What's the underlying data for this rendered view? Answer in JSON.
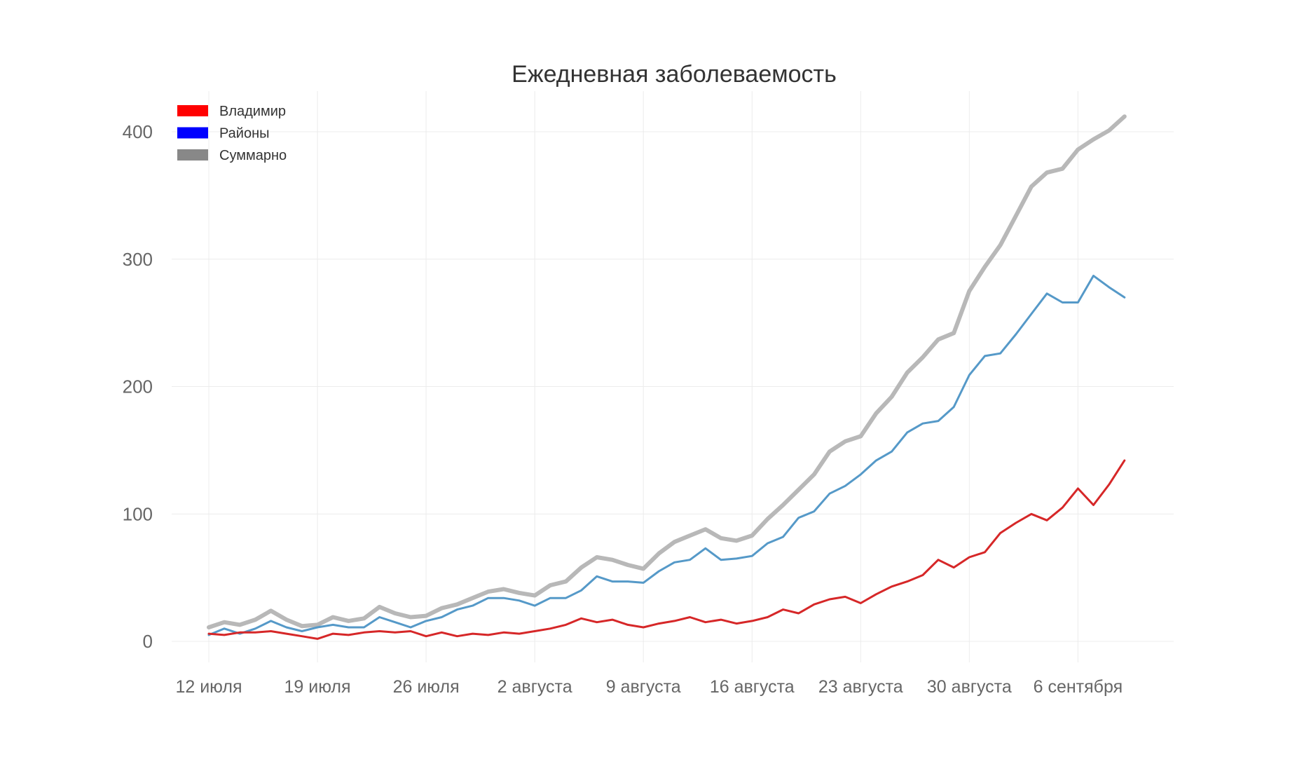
{
  "chart_data": {
    "type": "line",
    "title": "Ежедневная заболеваемость",
    "xlabel": "",
    "ylabel": "",
    "ylim": [
      0,
      420
    ],
    "y_ticks": [
      0,
      100,
      200,
      300,
      400
    ],
    "x_tick_labels": [
      "12 июля",
      "19 июля",
      "26 июля",
      "2 августа",
      "9 августа",
      "16 августа",
      "23 августа",
      "30 августа",
      "6 сентября"
    ],
    "x_tick_positions": [
      0,
      7,
      14,
      21,
      28,
      35,
      42,
      49,
      56
    ],
    "legend_position": "top-left",
    "x": [
      0,
      1,
      2,
      3,
      4,
      5,
      6,
      7,
      8,
      9,
      10,
      11,
      12,
      13,
      14,
      15,
      16,
      17,
      18,
      19,
      20,
      21,
      22,
      23,
      24,
      25,
      26,
      27,
      28,
      29,
      30,
      31,
      32,
      33,
      34,
      35,
      36,
      37,
      38,
      39,
      40,
      41,
      42,
      43,
      44,
      45,
      46,
      47,
      48,
      49,
      50,
      51,
      52,
      53,
      54,
      55,
      56,
      57,
      58,
      59
    ],
    "series": [
      {
        "name": "Владимир",
        "legend_color": "#ff0000",
        "color": "#d62728",
        "values": [
          6,
          5,
          7,
          7,
          8,
          6,
          4,
          2,
          6,
          5,
          7,
          8,
          7,
          8,
          4,
          7,
          4,
          6,
          5,
          7,
          6,
          8,
          10,
          13,
          18,
          15,
          17,
          13,
          11,
          14,
          16,
          19,
          15,
          17,
          14,
          16,
          19,
          25,
          22,
          29,
          33,
          35,
          30,
          37,
          43,
          47,
          52,
          64,
          58,
          66,
          70,
          85,
          93,
          100,
          95,
          105,
          120,
          107,
          123,
          142
        ]
      },
      {
        "name": "Районы",
        "legend_color": "#0000ff",
        "color": "#5599c8",
        "values": [
          5,
          10,
          6,
          10,
          16,
          11,
          8,
          11,
          13,
          11,
          11,
          19,
          15,
          11,
          16,
          19,
          25,
          28,
          34,
          34,
          32,
          28,
          34,
          34,
          40,
          51,
          47,
          47,
          46,
          55,
          62,
          64,
          73,
          64,
          65,
          67,
          77,
          82,
          97,
          102,
          116,
          122,
          131,
          142,
          149,
          164,
          171,
          173,
          184,
          209,
          224,
          226,
          241,
          257,
          273,
          266,
          266,
          287,
          278,
          270
        ]
      },
      {
        "name": "Суммарно",
        "legend_color": "#888888",
        "color": "#b8b8b8",
        "values": [
          11,
          15,
          13,
          17,
          24,
          17,
          12,
          13,
          19,
          16,
          18,
          27,
          22,
          19,
          20,
          26,
          29,
          34,
          39,
          41,
          38,
          36,
          44,
          47,
          58,
          66,
          64,
          60,
          57,
          69,
          78,
          83,
          88,
          81,
          79,
          83,
          96,
          107,
          119,
          131,
          149,
          157,
          161,
          179,
          192,
          211,
          223,
          237,
          242,
          275,
          294,
          311,
          334,
          357,
          368,
          371,
          386,
          394,
          401,
          412
        ]
      }
    ]
  }
}
